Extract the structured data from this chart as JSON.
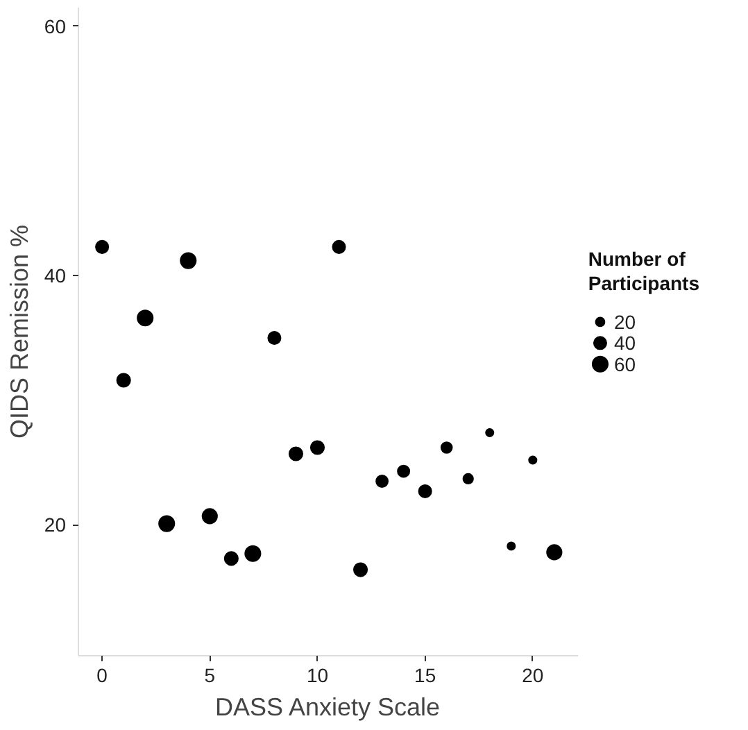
{
  "chart_data": {
    "type": "bubble",
    "xlabel": "DASS Anxiety Scale",
    "ylabel": "QIDS Remission %",
    "legend_title": "Number of Participants",
    "x": [
      0,
      1,
      2,
      3,
      4,
      5,
      6,
      7,
      8,
      9,
      10,
      11,
      12,
      13,
      14,
      15,
      16,
      17,
      18,
      19,
      20,
      21
    ],
    "values": [
      42.3,
      31.6,
      36.6,
      20.1,
      41.2,
      20.7,
      17.3,
      17.7,
      35.0,
      25.7,
      26.2,
      42.3,
      16.4,
      23.5,
      24.3,
      22.7,
      26.2,
      23.7,
      27.4,
      18.3,
      25.2,
      17.8
    ],
    "sizes": [
      40,
      45,
      60,
      60,
      60,
      55,
      45,
      60,
      40,
      45,
      45,
      40,
      45,
      35,
      35,
      40,
      30,
      25,
      15,
      15,
      15,
      55
    ],
    "size_legend": [
      20,
      40,
      60
    ],
    "color": "#000000",
    "xlim": [
      -1.1,
      22.1
    ],
    "ylim": [
      9.5,
      61.5
    ],
    "xticks": [
      0,
      5,
      10,
      15,
      20
    ],
    "yticks": [
      20,
      40,
      60
    ],
    "grid": false
  }
}
